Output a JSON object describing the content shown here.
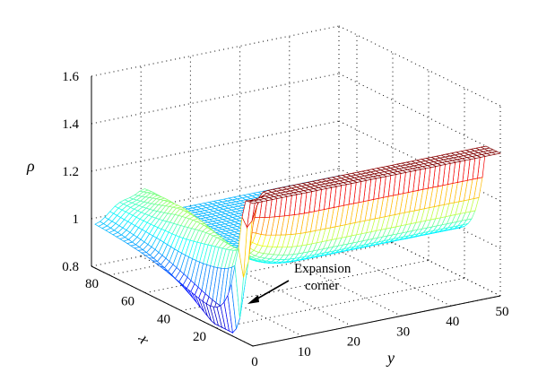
{
  "chart_data": {
    "type": "surface",
    "title": "",
    "xlabel": "x",
    "ylabel": "y",
    "zlabel": "ρ",
    "x_ticks": [
      20,
      40,
      60,
      80
    ],
    "y_ticks": [
      0,
      10,
      20,
      30,
      40,
      50
    ],
    "z_ticks": [
      "0.8",
      "1",
      "1.2",
      "1.4",
      "1.6"
    ],
    "xlim": [
      0,
      90
    ],
    "ylim": [
      0,
      50
    ],
    "zlim": [
      0.8,
      1.6
    ],
    "grid": true,
    "colormap": "jet",
    "surface": {
      "description_values": {
        "min_rho_at_corner": 0.8,
        "pre_expansion_plateau_rho": 1.4,
        "post_expansion_rho_near": 1.0,
        "ridge_peak_rho": 1.05
      }
    },
    "annotations": [
      {
        "text_lines": [
          "Expansion",
          "corner"
        ]
      }
    ]
  }
}
